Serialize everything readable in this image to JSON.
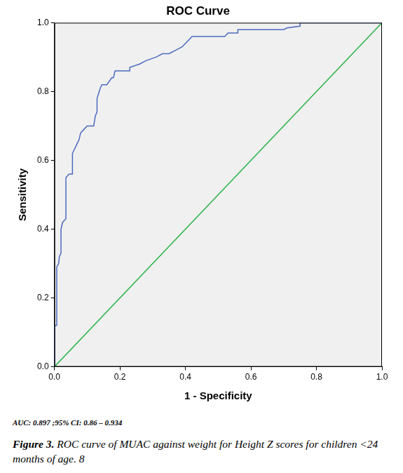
{
  "chart_data": {
    "type": "line",
    "title": "ROC Curve",
    "x_label": "1 - Specificity",
    "y_label": "Sensitivity",
    "annotation": "AUC: 0.897 ;95% CI: 0.86 – 0.934",
    "caption_label": "Figure 3.",
    "caption": "ROC curve of MUAC against weight for Height Z scores for children <24 months of age. 8",
    "xlim": [
      0,
      1
    ],
    "ylim": [
      0,
      1
    ],
    "xticks": [
      {
        "value": 0,
        "label": "0.0"
      },
      0.2,
      0.4,
      0.6,
      0.8,
      {
        "value": 1,
        "label": "1.0"
      }
    ],
    "yticks": [
      {
        "value": 0,
        "label": "0.0"
      },
      0.2,
      0.4,
      0.6,
      0.8,
      {
        "value": 1,
        "label": "1.0"
      }
    ],
    "grid": false,
    "series": [
      {
        "color": "#4a6bbf",
        "line_style": "solid",
        "x": [
          0,
          0,
          0.007,
          0.007,
          0.013,
          0.015,
          0.02,
          0.02,
          0.025,
          0.035,
          0.035,
          0.045,
          0.055,
          0.055,
          0.06,
          0.065,
          0.075,
          0.08,
          0.09,
          0.1,
          0.12,
          0.125,
          0.13,
          0.13,
          0.14,
          0.145,
          0.16,
          0.175,
          0.18,
          0.185,
          0.21,
          0.23,
          0.23,
          0.26,
          0.28,
          0.31,
          0.33,
          0.35,
          0.37,
          0.39,
          0.4,
          0.41,
          0.42,
          0.52,
          0.53,
          0.56,
          0.56,
          0.7,
          0.71,
          0.75,
          0.75,
          1.0
        ],
        "values": [
          0,
          0.12,
          0.12,
          0.29,
          0.3,
          0.32,
          0.33,
          0.4,
          0.42,
          0.43,
          0.55,
          0.56,
          0.56,
          0.62,
          0.63,
          0.64,
          0.66,
          0.68,
          0.69,
          0.7,
          0.7,
          0.73,
          0.74,
          0.78,
          0.81,
          0.82,
          0.82,
          0.84,
          0.84,
          0.86,
          0.86,
          0.86,
          0.87,
          0.88,
          0.89,
          0.9,
          0.91,
          0.91,
          0.92,
          0.93,
          0.94,
          0.95,
          0.96,
          0.96,
          0.97,
          0.97,
          0.98,
          0.98,
          0.985,
          0.99,
          1.0,
          1.0
        ]
      },
      {
        "color": "#2fb34a",
        "line_style": "solid",
        "x": [
          0,
          1
        ],
        "values": [
          0,
          1
        ]
      }
    ]
  }
}
